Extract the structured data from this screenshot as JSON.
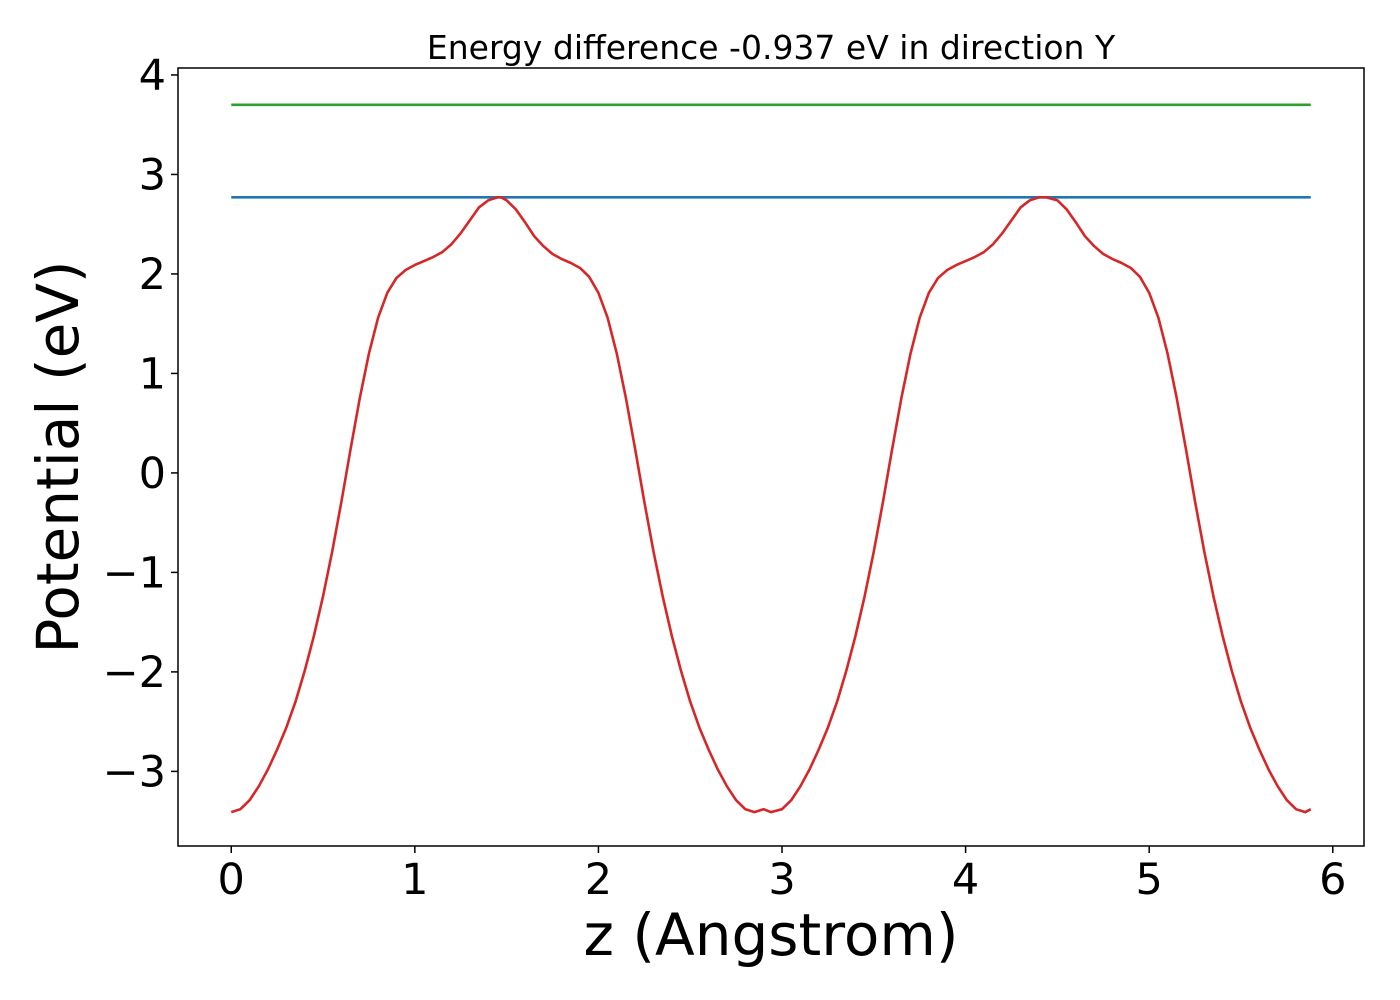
{
  "chart_data": {
    "type": "line",
    "title": "Energy difference -0.937 eV in direction Y",
    "xlabel": "z (Angstrom)",
    "ylabel": "Potential (eV)",
    "xlim": [
      -0.29,
      6.17
    ],
    "ylim": [
      -3.75,
      4.07
    ],
    "xticks": [
      0,
      1,
      2,
      3,
      4,
      5,
      6
    ],
    "yticks": [
      -3,
      -2,
      -1,
      0,
      1,
      2,
      3,
      4
    ],
    "xtick_labels": [
      "0",
      "1",
      "2",
      "3",
      "4",
      "5",
      "6"
    ],
    "ytick_labels": [
      "−3",
      "−2",
      "−1",
      "0",
      "1",
      "2",
      "3",
      "4"
    ],
    "grid": false,
    "series": [
      {
        "color": "#2ca02c",
        "x": [
          0,
          5.88
        ],
        "y": [
          3.7,
          3.7
        ]
      },
      {
        "color": "#1f77b4",
        "x": [
          0,
          5.88
        ],
        "y": [
          2.77,
          2.77
        ]
      },
      {
        "color": "#d62728",
        "x": [
          0,
          0.05,
          0.1,
          0.15,
          0.2,
          0.25,
          0.3,
          0.35,
          0.4,
          0.45,
          0.5,
          0.55,
          0.6,
          0.65,
          0.7,
          0.75,
          0.8,
          0.85,
          0.9,
          0.95,
          1.0,
          1.05,
          1.1,
          1.15,
          1.2,
          1.25,
          1.3,
          1.35,
          1.4,
          1.45,
          1.47,
          1.5,
          1.55,
          1.6,
          1.65,
          1.7,
          1.75,
          1.8,
          1.85,
          1.9,
          1.95,
          2.0,
          2.05,
          2.1,
          2.15,
          2.2,
          2.25,
          2.3,
          2.35,
          2.4,
          2.45,
          2.5,
          2.55,
          2.6,
          2.65,
          2.7,
          2.75,
          2.8,
          2.85,
          2.9,
          2.94,
          3.0,
          3.05,
          3.1,
          3.15,
          3.2,
          3.25,
          3.3,
          3.35,
          3.4,
          3.45,
          3.5,
          3.55,
          3.6,
          3.65,
          3.7,
          3.75,
          3.8,
          3.85,
          3.9,
          3.95,
          4.0,
          4.05,
          4.1,
          4.15,
          4.2,
          4.25,
          4.3,
          4.35,
          4.4,
          4.44,
          4.5,
          4.55,
          4.6,
          4.65,
          4.7,
          4.75,
          4.8,
          4.85,
          4.9,
          4.95,
          5.0,
          5.05,
          5.1,
          5.15,
          5.2,
          5.25,
          5.3,
          5.35,
          5.4,
          5.45,
          5.5,
          5.55,
          5.6,
          5.65,
          5.7,
          5.75,
          5.8,
          5.85,
          5.88
        ],
        "y": [
          -3.41,
          -3.38,
          -3.29,
          -3.15,
          -2.98,
          -2.78,
          -2.56,
          -2.3,
          -1.99,
          -1.64,
          -1.24,
          -0.79,
          -0.29,
          0.24,
          0.75,
          1.2,
          1.56,
          1.81,
          1.96,
          2.04,
          2.09,
          2.13,
          2.17,
          2.22,
          2.3,
          2.41,
          2.54,
          2.67,
          2.74,
          2.77,
          2.77,
          2.74,
          2.65,
          2.52,
          2.38,
          2.28,
          2.2,
          2.15,
          2.11,
          2.06,
          1.97,
          1.81,
          1.56,
          1.2,
          0.75,
          0.24,
          -0.29,
          -0.79,
          -1.24,
          -1.64,
          -1.99,
          -2.3,
          -2.56,
          -2.78,
          -2.98,
          -3.15,
          -3.29,
          -3.38,
          -3.41,
          -3.38,
          -3.41,
          -3.38,
          -3.29,
          -3.15,
          -2.98,
          -2.78,
          -2.56,
          -2.3,
          -1.99,
          -1.64,
          -1.24,
          -0.79,
          -0.29,
          0.24,
          0.75,
          1.2,
          1.56,
          1.81,
          1.96,
          2.04,
          2.09,
          2.13,
          2.17,
          2.22,
          2.3,
          2.41,
          2.54,
          2.67,
          2.74,
          2.77,
          2.77,
          2.74,
          2.65,
          2.52,
          2.38,
          2.28,
          2.2,
          2.15,
          2.11,
          2.06,
          1.97,
          1.81,
          1.56,
          1.2,
          0.75,
          0.24,
          -0.29,
          -0.79,
          -1.24,
          -1.64,
          -1.99,
          -2.3,
          -2.56,
          -2.78,
          -2.98,
          -3.15,
          -3.29,
          -3.38,
          -3.41,
          -3.38
        ]
      }
    ]
  }
}
